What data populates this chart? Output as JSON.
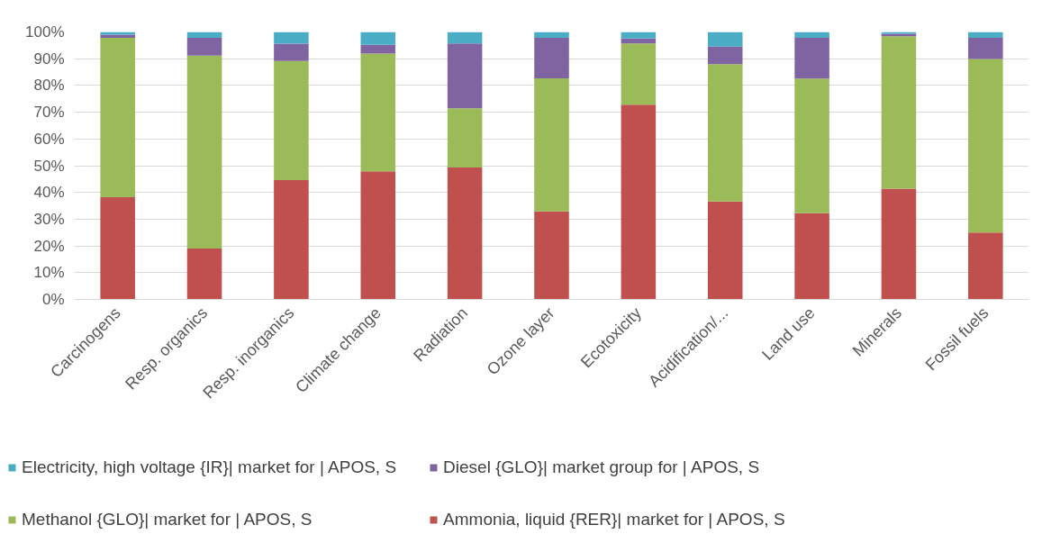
{
  "chart_data": {
    "type": "bar",
    "stacked": true,
    "categories": [
      "Carcinogens",
      "Resp. organics",
      "Resp. inorganics",
      "Climate change",
      "Radiation",
      "Ozone layer",
      "Ecotoxicity",
      "Acidification/...",
      "Land use",
      "Minerals",
      "Fossil fuels"
    ],
    "series": [
      {
        "name": "Ammonia, liquid {RER}| market for | APOS, S",
        "color": "#c0504d",
        "values": [
          38.2,
          19.0,
          44.6,
          47.9,
          49.3,
          32.9,
          72.8,
          36.6,
          32.2,
          41.4,
          25.0
        ]
      },
      {
        "name": "Methanol {GLO}| market for | APOS, S",
        "color": "#9bbb59",
        "values": [
          59.6,
          72.2,
          44.5,
          44.0,
          22.2,
          49.8,
          22.9,
          51.4,
          50.4,
          57.0,
          64.9
        ]
      },
      {
        "name": "Diesel {GLO}| market group for | APOS, S",
        "color": "#8064a2",
        "values": [
          1.2,
          6.6,
          6.5,
          3.3,
          24.2,
          15.1,
          1.9,
          6.5,
          15.2,
          0.9,
          7.9
        ]
      },
      {
        "name": "Electricity, high voltage {IR}| market for | APOS, S",
        "color": "#4bacc6",
        "values": [
          1.0,
          2.2,
          4.4,
          4.8,
          4.3,
          2.2,
          2.4,
          5.5,
          2.2,
          0.7,
          2.2
        ]
      }
    ],
    "ylim": [
      0,
      100
    ],
    "yticks": [
      {
        "value": 0,
        "label": "0%"
      },
      {
        "value": 10,
        "label": "10%"
      },
      {
        "value": 20,
        "label": "20%"
      },
      {
        "value": 30,
        "label": "30%"
      },
      {
        "value": 40,
        "label": "40%"
      },
      {
        "value": 50,
        "label": "50%"
      },
      {
        "value": 60,
        "label": "60%"
      },
      {
        "value": 70,
        "label": "70%"
      },
      {
        "value": 80,
        "label": "80%"
      },
      {
        "value": 90,
        "label": "90%"
      },
      {
        "value": 100,
        "label": "100%"
      }
    ],
    "grid": "y",
    "legend": "bottom"
  }
}
